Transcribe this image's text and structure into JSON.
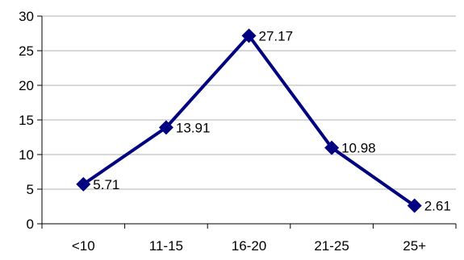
{
  "chart_data": {
    "type": "line",
    "categories": [
      "<10",
      "11-15",
      "16-20",
      "21-25",
      "25+"
    ],
    "values": [
      5.71,
      13.91,
      27.17,
      10.98,
      2.61
    ],
    "data_labels": [
      "5.71",
      "13.91",
      "27.17",
      "10.98",
      "2.61"
    ],
    "y_ticks": [
      "0",
      "5",
      "10",
      "15",
      "20",
      "25",
      "30"
    ],
    "ylim": [
      0,
      30
    ],
    "y_step": 5,
    "grid": "horizontal",
    "legend": "none",
    "marker": "diamond",
    "colors": {
      "series": "#000080",
      "grid": "#b0b0b0",
      "axis": "#000000"
    }
  }
}
